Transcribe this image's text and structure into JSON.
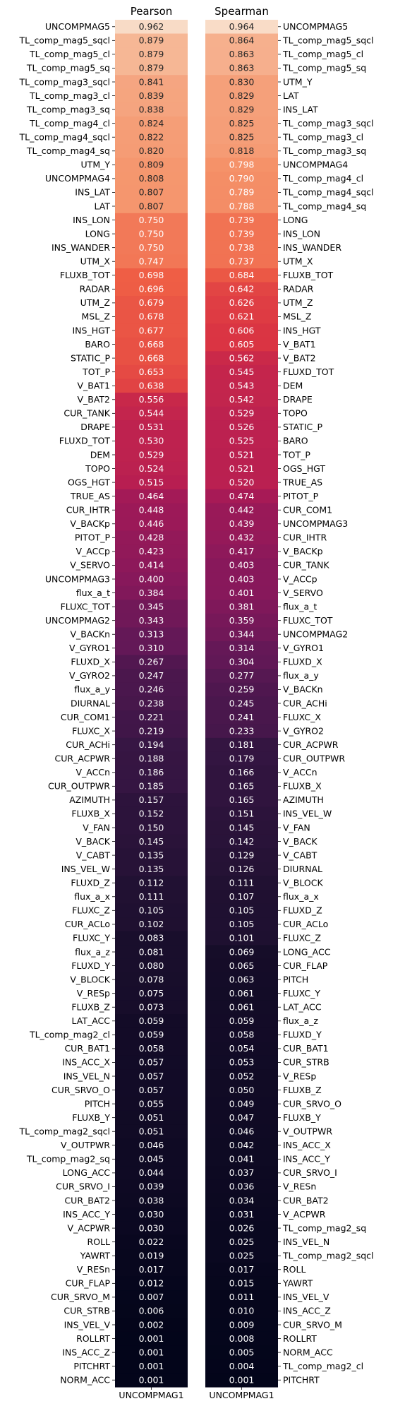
{
  "chart_data": {
    "type": "heatmap",
    "colormap": "rocket",
    "color_range": [
      0,
      1
    ],
    "xlabel_left": "UNCOMPMAG1",
    "xlabel_right": "UNCOMPMAG1",
    "panels": [
      {
        "title": "Pearson",
        "labels": [
          "UNCOMPMAG5",
          "TL_comp_mag5_sqcl",
          "TL_comp_mag5_cl",
          "TL_comp_mag5_sq",
          "TL_comp_mag3_sqcl",
          "TL_comp_mag3_cl",
          "TL_comp_mag3_sq",
          "TL_comp_mag4_cl",
          "TL_comp_mag4_sqcl",
          "TL_comp_mag4_sq",
          "UTM_Y",
          "UNCOMPMAG4",
          "INS_LAT",
          "LAT",
          "INS_LON",
          "LONG",
          "INS_WANDER",
          "UTM_X",
          "FLUXB_TOT",
          "RADAR",
          "UTM_Z",
          "MSL_Z",
          "INS_HGT",
          "BARO",
          "STATIC_P",
          "TOT_P",
          "V_BAT1",
          "V_BAT2",
          "CUR_TANK",
          "DRAPE",
          "FLUXD_TOT",
          "DEM",
          "TOPO",
          "OGS_HGT",
          "TRUE_AS",
          "CUR_IHTR",
          "V_BACKp",
          "PITOT_P",
          "V_ACCp",
          "V_SERVO",
          "UNCOMPMAG3",
          "flux_a_t",
          "FLUXC_TOT",
          "UNCOMPMAG2",
          "V_BACKn",
          "V_GYRO1",
          "FLUXD_X",
          "V_GYRO2",
          "flux_a_y",
          "DIURNAL",
          "CUR_COM1",
          "FLUXC_X",
          "CUR_ACHi",
          "CUR_ACPWR",
          "V_ACCn",
          "CUR_OUTPWR",
          "AZIMUTH",
          "FLUXB_X",
          "V_FAN",
          "V_BACK",
          "V_CABT",
          "INS_VEL_W",
          "FLUXD_Z",
          "flux_a_x",
          "FLUXC_Z",
          "CUR_ACLo",
          "FLUXC_Y",
          "flux_a_z",
          "FLUXD_Y",
          "V_BLOCK",
          "V_RESp",
          "FLUXB_Z",
          "LAT_ACC",
          "TL_comp_mag2_cl",
          "CUR_BAT1",
          "INS_ACC_X",
          "INS_VEL_N",
          "CUR_SRVO_O",
          "PITCH",
          "FLUXB_Y",
          "TL_comp_mag2_sqcl",
          "V_OUTPWR",
          "TL_comp_mag2_sq",
          "LONG_ACC",
          "CUR_SRVO_I",
          "CUR_BAT2",
          "INS_ACC_Y",
          "V_ACPWR",
          "ROLL",
          "YAWRT",
          "V_RESn",
          "CUR_FLAP",
          "CUR_SRVO_M",
          "CUR_STRB",
          "INS_VEL_V",
          "ROLLRT",
          "INS_ACC_Z",
          "PITCHRT",
          "NORM_ACC"
        ],
        "values": [
          "0.962",
          "0.879",
          "0.879",
          "0.879",
          "0.841",
          "0.839",
          "0.838",
          "0.824",
          "0.822",
          "0.820",
          "0.809",
          "0.808",
          "0.807",
          "0.807",
          "0.750",
          "0.750",
          "0.750",
          "0.747",
          "0.698",
          "0.696",
          "0.679",
          "0.678",
          "0.677",
          "0.668",
          "0.668",
          "0.653",
          "0.638",
          "0.556",
          "0.544",
          "0.531",
          "0.530",
          "0.529",
          "0.524",
          "0.515",
          "0.464",
          "0.448",
          "0.446",
          "0.428",
          "0.423",
          "0.414",
          "0.400",
          "0.384",
          "0.345",
          "0.343",
          "0.313",
          "0.310",
          "0.267",
          "0.247",
          "0.246",
          "0.238",
          "0.221",
          "0.219",
          "0.194",
          "0.188",
          "0.186",
          "0.185",
          "0.157",
          "0.152",
          "0.150",
          "0.145",
          "0.135",
          "0.135",
          "0.112",
          "0.111",
          "0.105",
          "0.102",
          "0.083",
          "0.081",
          "0.080",
          "0.078",
          "0.075",
          "0.073",
          "0.059",
          "0.059",
          "0.058",
          "0.057",
          "0.057",
          "0.057",
          "0.055",
          "0.051",
          "0.051",
          "0.046",
          "0.045",
          "0.044",
          "0.039",
          "0.038",
          "0.030",
          "0.030",
          "0.022",
          "0.019",
          "0.017",
          "0.012",
          "0.007",
          "0.006",
          "0.002",
          "0.001",
          "0.001",
          "0.001",
          "0.001"
        ]
      },
      {
        "title": "Spearman",
        "labels": [
          "UNCOMPMAG5",
          "TL_comp_mag5_sqcl",
          "TL_comp_mag5_cl",
          "TL_comp_mag5_sq",
          "UTM_Y",
          "LAT",
          "INS_LAT",
          "TL_comp_mag3_sqcl",
          "TL_comp_mag3_cl",
          "TL_comp_mag3_sq",
          "UNCOMPMAG4",
          "TL_comp_mag4_cl",
          "TL_comp_mag4_sqcl",
          "TL_comp_mag4_sq",
          "LONG",
          "INS_LON",
          "INS_WANDER",
          "UTM_X",
          "FLUXB_TOT",
          "RADAR",
          "UTM_Z",
          "MSL_Z",
          "INS_HGT",
          "V_BAT1",
          "V_BAT2",
          "FLUXD_TOT",
          "DEM",
          "DRAPE",
          "TOPO",
          "STATIC_P",
          "BARO",
          "TOT_P",
          "OGS_HGT",
          "TRUE_AS",
          "PITOT_P",
          "CUR_COM1",
          "UNCOMPMAG3",
          "CUR_IHTR",
          "V_BACKp",
          "CUR_TANK",
          "V_ACCp",
          "V_SERVO",
          "flux_a_t",
          "FLUXC_TOT",
          "UNCOMPMAG2",
          "V_GYRO1",
          "FLUXD_X",
          "flux_a_y",
          "V_BACKn",
          "CUR_ACHi",
          "FLUXC_X",
          "V_GYRO2",
          "CUR_ACPWR",
          "CUR_OUTPWR",
          "V_ACCn",
          "FLUXB_X",
          "AZIMUTH",
          "INS_VEL_W",
          "V_FAN",
          "V_BACK",
          "V_CABT",
          "DIURNAL",
          "V_BLOCK",
          "flux_a_x",
          "FLUXD_Z",
          "CUR_ACLo",
          "FLUXC_Z",
          "LONG_ACC",
          "CUR_FLAP",
          "PITCH",
          "FLUXC_Y",
          "LAT_ACC",
          "flux_a_z",
          "FLUXD_Y",
          "CUR_BAT1",
          "CUR_STRB",
          "V_RESp",
          "FLUXB_Z",
          "CUR_SRVO_O",
          "FLUXB_Y",
          "V_OUTPWR",
          "INS_ACC_X",
          "INS_ACC_Y",
          "CUR_SRVO_I",
          "V_RESn",
          "CUR_BAT2",
          "V_ACPWR",
          "TL_comp_mag2_sq",
          "INS_VEL_N",
          "TL_comp_mag2_sqcl",
          "ROLL",
          "YAWRT",
          "INS_VEL_V",
          "INS_ACC_Z",
          "CUR_SRVO_M",
          "ROLLRT",
          "NORM_ACC",
          "TL_comp_mag2_cl",
          "PITCHRT"
        ],
        "values": [
          "0.964",
          "0.864",
          "0.863",
          "0.863",
          "0.830",
          "0.829",
          "0.829",
          "0.825",
          "0.825",
          "0.818",
          "0.798",
          "0.790",
          "0.789",
          "0.788",
          "0.739",
          "0.739",
          "0.738",
          "0.737",
          "0.684",
          "0.642",
          "0.626",
          "0.621",
          "0.606",
          "0.605",
          "0.562",
          "0.545",
          "0.543",
          "0.542",
          "0.529",
          "0.526",
          "0.525",
          "0.521",
          "0.521",
          "0.520",
          "0.474",
          "0.442",
          "0.439",
          "0.432",
          "0.417",
          "0.403",
          "0.403",
          "0.401",
          "0.381",
          "0.359",
          "0.344",
          "0.314",
          "0.304",
          "0.277",
          "0.259",
          "0.245",
          "0.241",
          "0.233",
          "0.181",
          "0.179",
          "0.166",
          "0.165",
          "0.165",
          "0.151",
          "0.145",
          "0.142",
          "0.129",
          "0.126",
          "0.111",
          "0.107",
          "0.105",
          "0.105",
          "0.101",
          "0.069",
          "0.065",
          "0.063",
          "0.061",
          "0.061",
          "0.059",
          "0.058",
          "0.054",
          "0.053",
          "0.052",
          "0.050",
          "0.049",
          "0.047",
          "0.046",
          "0.042",
          "0.041",
          "0.037",
          "0.036",
          "0.034",
          "0.031",
          "0.026",
          "0.025",
          "0.025",
          "0.017",
          "0.015",
          "0.011",
          "0.010",
          "0.009",
          "0.008",
          "0.005",
          "0.004",
          "0.001"
        ]
      }
    ]
  }
}
